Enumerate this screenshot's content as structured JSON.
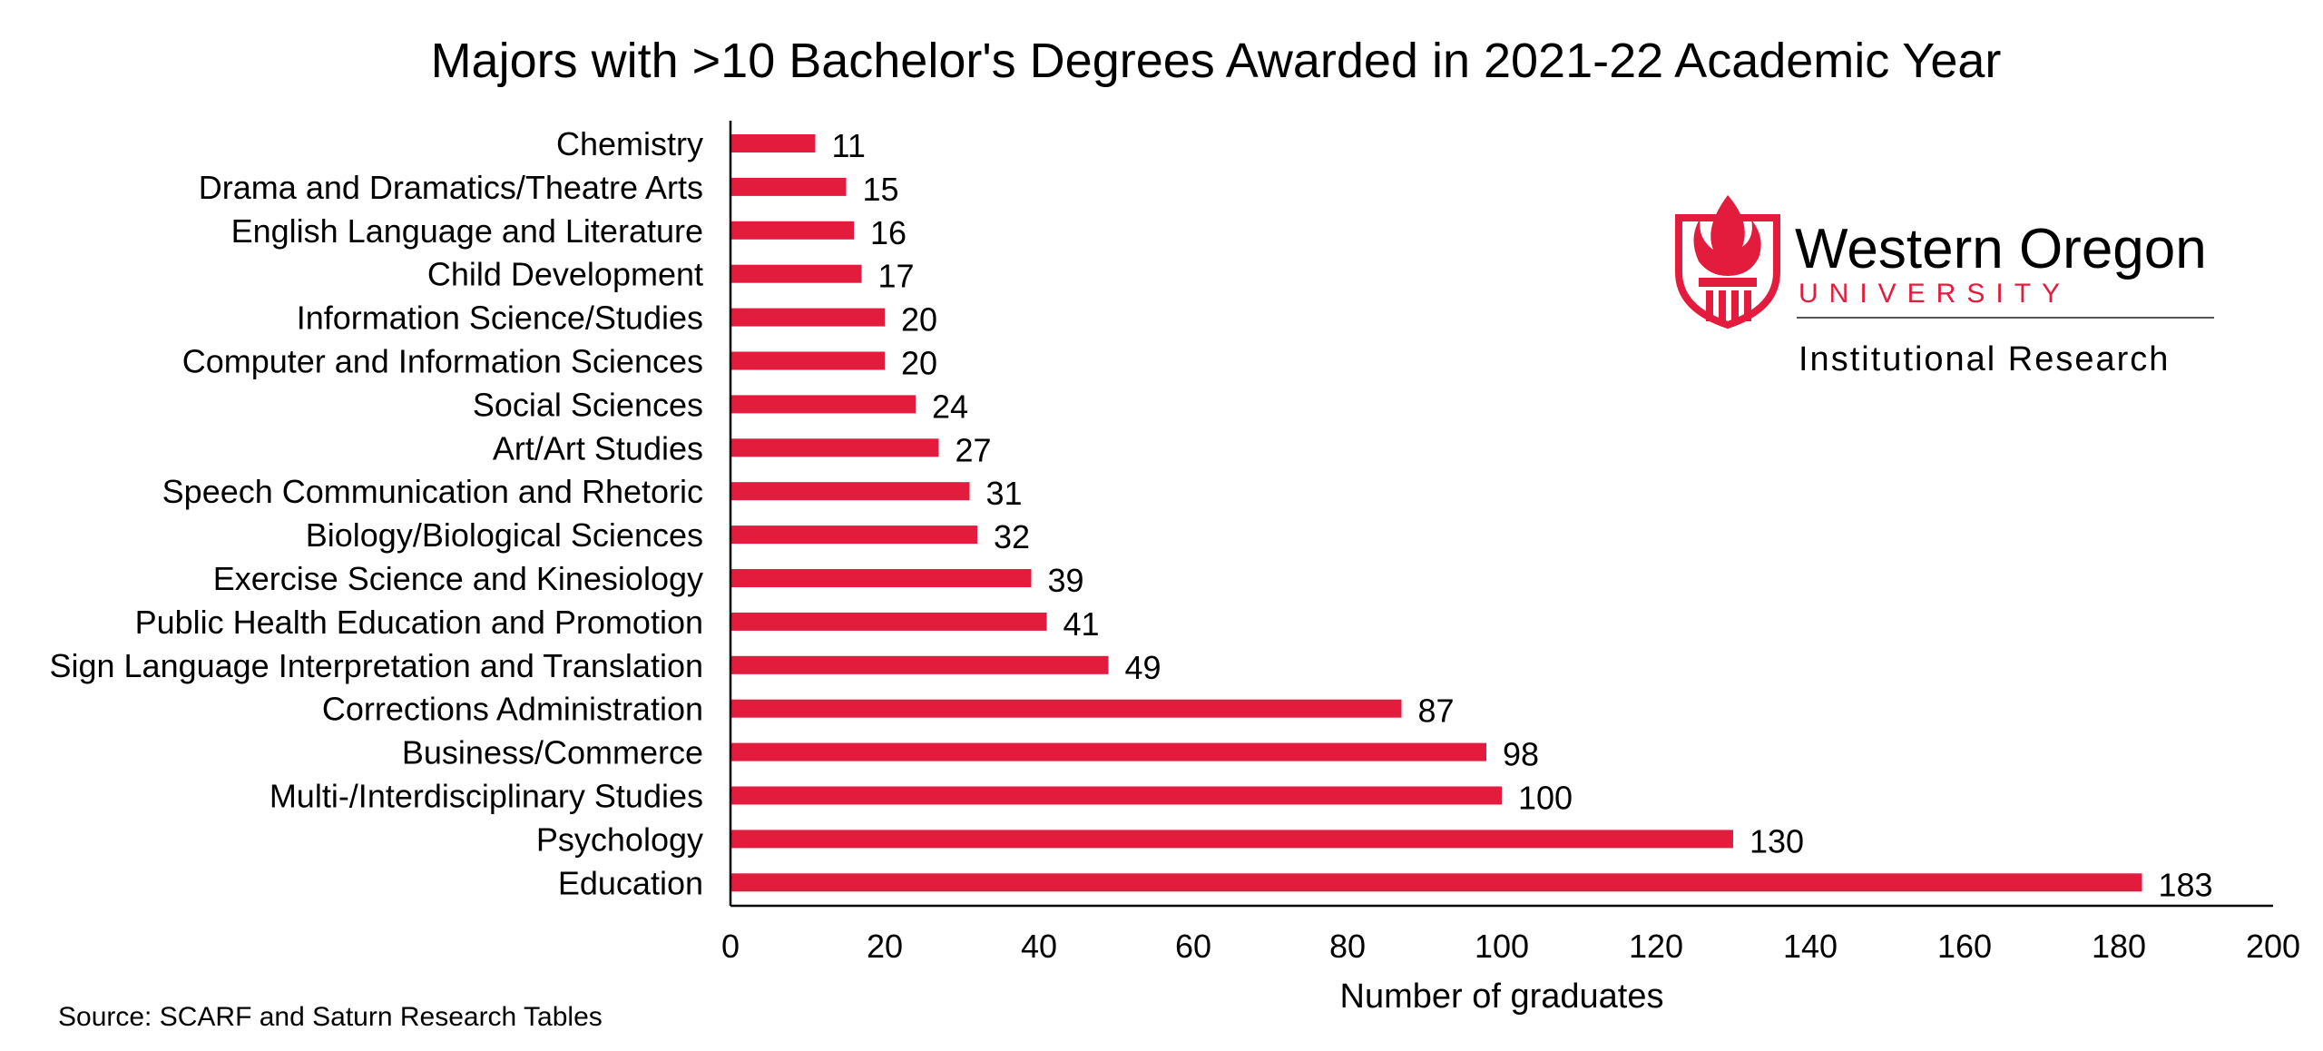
{
  "chart_data": {
    "type": "bar",
    "orientation": "horizontal",
    "title": "Majors with >10 Bachelor's Degrees Awarded in 2021-22 Academic Year",
    "xlabel": "Number of graduates",
    "ylabel": "",
    "xlim": [
      0,
      200
    ],
    "xticks": [
      "0",
      "20",
      "40",
      "60",
      "80",
      "100",
      "120",
      "140",
      "160",
      "180",
      "200"
    ],
    "grid": false,
    "bar_color": "#E31C3D",
    "categories": [
      "Chemistry",
      "Drama and Dramatics/Theatre Arts",
      "English Language and Literature",
      "Child Development",
      "Information Science/Studies",
      "Computer and Information Sciences",
      "Social Sciences",
      "Art/Art Studies",
      "Speech Communication and Rhetoric",
      "Biology/Biological Sciences",
      "Exercise Science and Kinesiology",
      "Public Health Education and Promotion",
      "Sign Language Interpretation and Translation",
      "Corrections Administration",
      "Business/Commerce",
      "Multi-/Interdisciplinary Studies",
      "Psychology",
      "Education"
    ],
    "values": [
      11,
      15,
      16,
      17,
      20,
      20,
      24,
      27,
      31,
      32,
      39,
      41,
      49,
      87,
      98,
      100,
      130,
      183
    ],
    "source": "Source: SCARF and Saturn Research Tables"
  },
  "logo": {
    "name": "Western Oregon",
    "sub": "UNIVERSITY",
    "dept": "Institutional Research",
    "color": "#E31C3D"
  }
}
